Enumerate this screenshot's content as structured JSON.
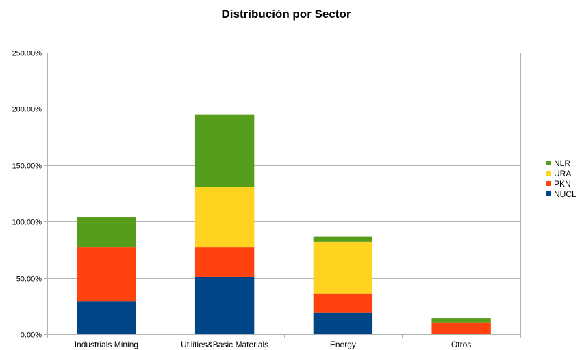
{
  "chart_data": {
    "type": "bar",
    "stacked": true,
    "title": "Distribución por Sector",
    "xlabel": "",
    "ylabel": "",
    "categories": [
      "Industrials Mining",
      "Utilities&Basic Materials",
      "Energy",
      "Otros"
    ],
    "series": [
      {
        "name": "NUCL",
        "color": "#004586",
        "values": [
          29,
          51,
          19,
          0.5
        ]
      },
      {
        "name": "PKN",
        "color": "#ff420e",
        "values": [
          48,
          26,
          17,
          10
        ]
      },
      {
        "name": "URA",
        "color": "#ffd320",
        "values": [
          0,
          54,
          46,
          0
        ]
      },
      {
        "name": "NLR",
        "color": "#579d1c",
        "values": [
          27,
          64,
          5,
          4
        ]
      }
    ],
    "ylim": [
      0,
      250
    ],
    "yticks": [
      "0.00%",
      "50.00%",
      "100.00%",
      "150.00%",
      "200.00%",
      "250.00%"
    ],
    "ytick_values": [
      0,
      50,
      100,
      150,
      200,
      250
    ],
    "grid": true,
    "legend_position": "right"
  }
}
